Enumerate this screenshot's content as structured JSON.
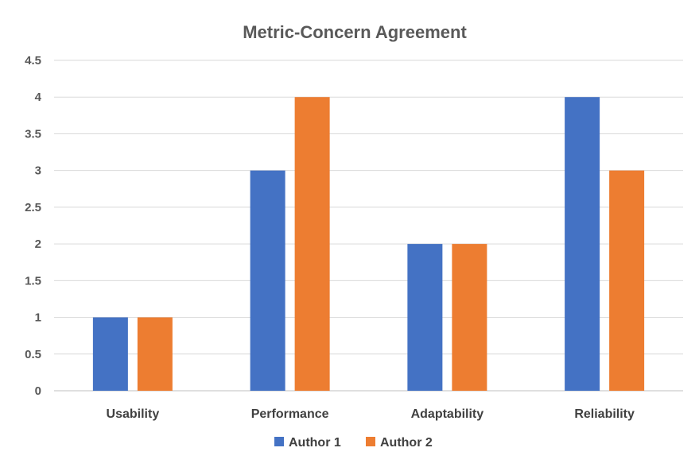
{
  "chart_data": {
    "type": "bar",
    "title": "Metric-Concern Agreement",
    "xlabel": "",
    "ylabel": "",
    "categories": [
      "Usability",
      "Performance",
      "Adaptability",
      "Reliability"
    ],
    "series": [
      {
        "name": "Author 1",
        "values": [
          1,
          3,
          2,
          4
        ],
        "color": "#4472C4"
      },
      {
        "name": "Author 2",
        "values": [
          1,
          4,
          2,
          3
        ],
        "color": "#ED7D31"
      }
    ],
    "ylim": [
      0,
      4.5
    ],
    "yticks": [
      "0",
      "0.5",
      "1",
      "1.5",
      "2",
      "2.5",
      "3",
      "3.5",
      "4",
      "4.5"
    ],
    "grid": true,
    "legend_position": "bottom"
  }
}
